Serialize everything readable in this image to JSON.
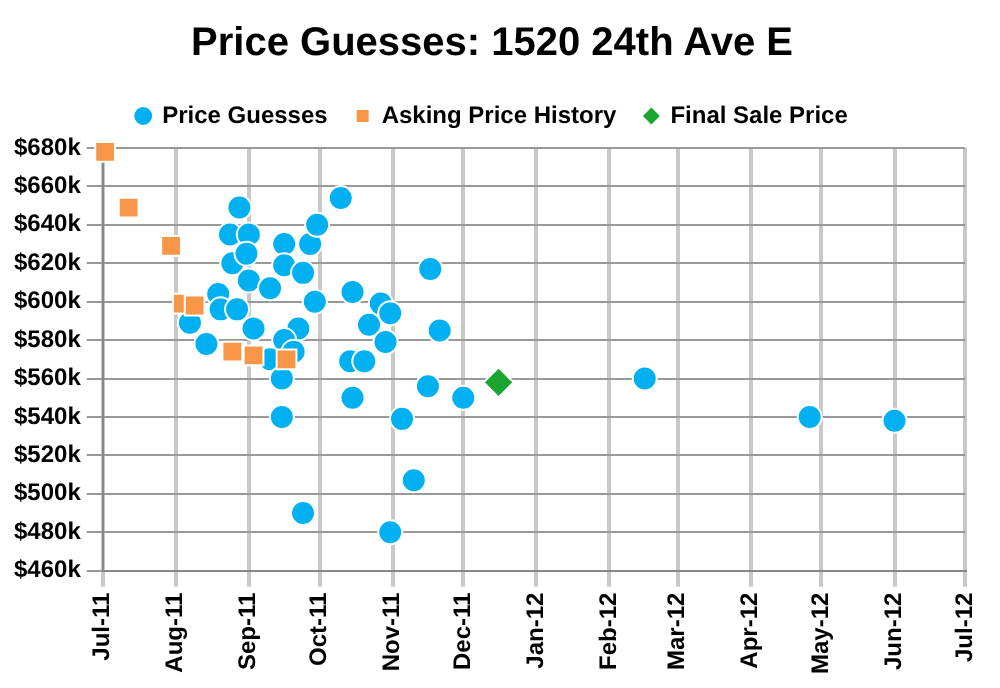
{
  "chart_data": {
    "type": "scatter",
    "title": "Price Guesses: 1520 24th Ave E",
    "legend": "top",
    "grid": true,
    "xlim": [
      "2011-07-01",
      "2012-07-01"
    ],
    "xticks": [
      {
        "value": "2011-07-01",
        "label": "Jul-11"
      },
      {
        "value": "2011-08-01",
        "label": "Aug-11"
      },
      {
        "value": "2011-09-01",
        "label": "Sep-11"
      },
      {
        "value": "2011-10-01",
        "label": "Oct-11"
      },
      {
        "value": "2011-11-01",
        "label": "Nov-11"
      },
      {
        "value": "2011-12-01",
        "label": "Dec-11"
      },
      {
        "value": "2012-01-01",
        "label": "Jan-12"
      },
      {
        "value": "2012-02-01",
        "label": "Feb-12"
      },
      {
        "value": "2012-03-01",
        "label": "Mar-12"
      },
      {
        "value": "2012-04-01",
        "label": "Apr-12"
      },
      {
        "value": "2012-05-01",
        "label": "May-12"
      },
      {
        "value": "2012-06-01",
        "label": "Jun-12"
      },
      {
        "value": "2012-07-01",
        "label": "Jul-12"
      }
    ],
    "ylim": [
      460,
      680
    ],
    "yticks": [
      {
        "value": 460,
        "label": "$460k"
      },
      {
        "value": 480,
        "label": "$480k"
      },
      {
        "value": 500,
        "label": "$500k"
      },
      {
        "value": 520,
        "label": "$520k"
      },
      {
        "value": 540,
        "label": "$540k"
      },
      {
        "value": 560,
        "label": "$560k"
      },
      {
        "value": 580,
        "label": "$580k"
      },
      {
        "value": 600,
        "label": "$600k"
      },
      {
        "value": 620,
        "label": "$620k"
      },
      {
        "value": 640,
        "label": "$640k"
      },
      {
        "value": 660,
        "label": "$660k"
      },
      {
        "value": 680,
        "label": "$680k"
      }
    ],
    "series": [
      {
        "name": "Price Guesses",
        "color": "#00b0f0",
        "marker": "circle",
        "x": [
          "2011-08-28",
          "2011-08-24",
          "2011-09-01",
          "2011-08-25",
          "2011-08-31",
          "2011-08-19",
          "2011-08-20",
          "2011-08-27",
          "2011-09-01",
          "2011-09-10",
          "2011-08-07",
          "2011-08-14",
          "2011-09-03",
          "2011-09-16",
          "2011-09-16",
          "2011-09-24",
          "2011-09-27",
          "2011-09-30",
          "2011-10-10",
          "2011-09-29",
          "2011-09-22",
          "2011-09-16",
          "2011-09-20",
          "2011-09-10",
          "2011-10-15",
          "2011-10-27",
          "2011-10-31",
          "2011-10-22",
          "2011-10-29",
          "2011-11-17",
          "2011-11-21",
          "2011-10-14",
          "2011-10-20",
          "2011-09-15",
          "2011-09-15",
          "2011-10-15",
          "2011-11-05",
          "2011-11-16",
          "2011-12-01",
          "2011-11-10",
          "2011-10-31",
          "2011-09-24",
          "2012-02-16",
          "2012-04-26",
          "2012-06-01"
        ],
        "values": [
          649,
          635,
          635,
          620,
          625,
          604,
          596,
          596,
          611,
          607,
          589,
          578,
          586,
          630,
          619,
          615,
          630,
          640,
          654,
          600,
          586,
          580,
          574,
          570,
          605,
          599,
          594,
          588,
          579,
          617,
          585,
          569,
          569,
          560,
          540,
          550,
          539,
          556,
          550,
          507,
          480,
          490,
          560,
          540,
          538
        ]
      },
      {
        "name": "Asking Price History",
        "color": "#f79646",
        "marker": "square",
        "x": [
          "2011-07-02",
          "2011-07-12",
          "2011-07-30",
          "2011-08-04",
          "2011-08-09",
          "2011-08-25",
          "2011-09-03",
          "2011-09-17"
        ],
        "values": [
          678,
          649,
          629,
          599,
          598,
          574,
          572,
          570
        ]
      },
      {
        "name": "Final Sale Price",
        "color": "#1aa531",
        "marker": "diamond",
        "x": [
          "2011-12-16"
        ],
        "values": [
          558
        ]
      }
    ]
  }
}
